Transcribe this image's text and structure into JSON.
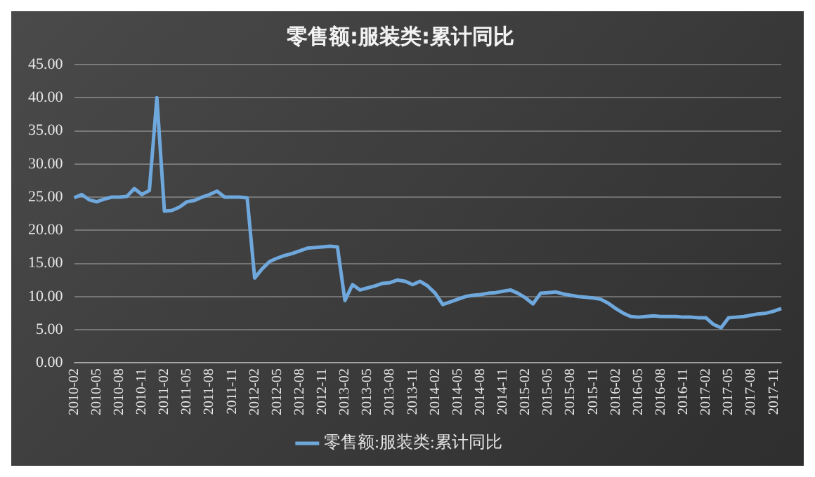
{
  "chart_data": {
    "type": "line",
    "title": "零售额:服装类:累计同比",
    "categories": [
      "2010-02",
      null,
      null,
      "2010-05",
      null,
      null,
      "2010-08",
      null,
      null,
      "2010-11",
      null,
      null,
      "2011-02",
      null,
      null,
      "2011-05",
      null,
      null,
      "2011-08",
      null,
      null,
      "2011-11",
      null,
      null,
      "2012-02",
      null,
      null,
      "2012-05",
      null,
      null,
      "2012-08",
      null,
      null,
      "2012-11",
      null,
      null,
      "2013-02",
      null,
      null,
      "2013-05",
      null,
      null,
      "2013-08",
      null,
      null,
      "2013-11",
      null,
      null,
      "2014-02",
      null,
      null,
      "2014-05",
      null,
      null,
      "2014-08",
      null,
      null,
      "2014-11",
      null,
      null,
      "2015-02",
      null,
      null,
      "2015-05",
      null,
      null,
      "2015-08",
      null,
      null,
      "2015-11",
      null,
      null,
      "2016-02",
      null,
      null,
      "2016-05",
      null,
      null,
      "2016-08",
      null,
      null,
      "2016-11",
      null,
      null,
      "2017-02",
      null,
      null,
      "2017-05",
      null,
      null,
      "2017-08",
      null,
      null,
      "2017-11",
      null
    ],
    "series": [
      {
        "name": "零售额:服装类:累计同比",
        "color": "#6fa8dc",
        "values": [
          24.9,
          25.4,
          24.6,
          24.3,
          24.7,
          25.0,
          25.0,
          25.1,
          26.3,
          25.4,
          26.0,
          40.0,
          22.9,
          23.0,
          23.5,
          24.3,
          24.5,
          25.0,
          25.4,
          25.9,
          25.0,
          25.0,
          25.0,
          24.9,
          12.8,
          14.2,
          15.3,
          15.8,
          16.2,
          16.5,
          16.9,
          17.3,
          17.4,
          17.5,
          17.6,
          17.5,
          9.4,
          11.8,
          11.0,
          11.3,
          11.6,
          12.0,
          12.1,
          12.5,
          12.3,
          11.8,
          12.3,
          11.6,
          10.5,
          8.8,
          9.2,
          9.6,
          10.0,
          10.2,
          10.3,
          10.5,
          10.6,
          10.8,
          11.0,
          10.5,
          9.8,
          8.9,
          10.5,
          10.6,
          10.7,
          10.4,
          10.2,
          10.0,
          9.9,
          9.8,
          9.6,
          9.0,
          8.2,
          7.5,
          7.0,
          6.9,
          7.0,
          7.1,
          7.0,
          7.0,
          7.0,
          6.9,
          6.9,
          6.8,
          6.8,
          5.8,
          5.3,
          6.8,
          6.9,
          7.0,
          7.2,
          7.4,
          7.5,
          7.8,
          8.2
        ]
      }
    ],
    "ylim": [
      0,
      45
    ],
    "yticks": [
      {
        "value": 0,
        "label": "0.00"
      },
      {
        "value": 5,
        "label": "5.00"
      },
      {
        "value": 10,
        "label": "10.00"
      },
      {
        "value": 15,
        "label": "15.00"
      },
      {
        "value": 20,
        "label": "20.00"
      },
      {
        "value": 25,
        "label": "25.00"
      },
      {
        "value": 30,
        "label": "30.00"
      },
      {
        "value": 35,
        "label": "35.00"
      },
      {
        "value": 40,
        "label": "40.00"
      },
      {
        "value": 45,
        "label": "45.00"
      }
    ],
    "grid": "y",
    "legend": "bottom"
  }
}
